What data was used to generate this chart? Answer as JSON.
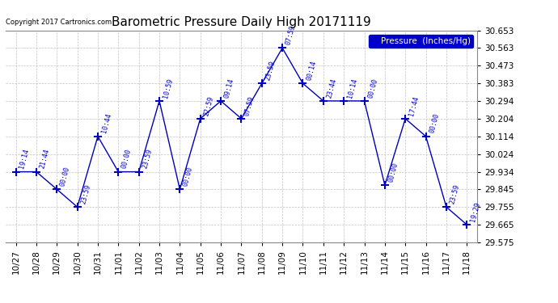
{
  "title": "Barometric Pressure Daily High 20171119",
  "copyright": "Copyright 2017 Cartronics.com",
  "legend_label": "Pressure  (Inches/Hg)",
  "dates": [
    "10/27",
    "10/28",
    "10/29",
    "10/30",
    "10/31",
    "11/01",
    "11/02",
    "11/03",
    "11/04",
    "11/05",
    "11/06",
    "11/07",
    "11/08",
    "11/09",
    "11/10",
    "11/11",
    "11/12",
    "11/13",
    "11/14",
    "11/15",
    "11/16",
    "11/17",
    "11/18"
  ],
  "pressures": [
    29.934,
    29.934,
    29.845,
    29.755,
    30.114,
    29.934,
    29.934,
    30.294,
    29.845,
    30.204,
    30.294,
    30.204,
    30.383,
    30.563,
    30.383,
    30.294,
    30.294,
    30.294,
    29.865,
    30.204,
    30.114,
    29.755,
    29.665
  ],
  "times": [
    "19:14",
    "21:44",
    "00:00",
    "23:59",
    "10:44",
    "00:00",
    "23:59",
    "10:59",
    "00:00",
    "22:59",
    "09:14",
    "07:59",
    "23:59",
    "07:59",
    "00:14",
    "23:44",
    "10:14",
    "00:00",
    "00:00",
    "17:44",
    "00:00",
    "23:59",
    "19:29"
  ],
  "ylim_min": 29.575,
  "ylim_max": 30.653,
  "yticks": [
    29.575,
    29.665,
    29.755,
    29.845,
    29.934,
    30.024,
    30.114,
    30.204,
    30.294,
    30.383,
    30.473,
    30.563,
    30.653
  ],
  "line_color": "#0000bb",
  "marker_color": "#0000bb",
  "bg_color": "#ffffff",
  "grid_color": "#bbbbbb",
  "title_color": "#000000",
  "copyright_color": "#000000",
  "legend_box_color": "#0000cc",
  "annotation_color": "#0000cc"
}
